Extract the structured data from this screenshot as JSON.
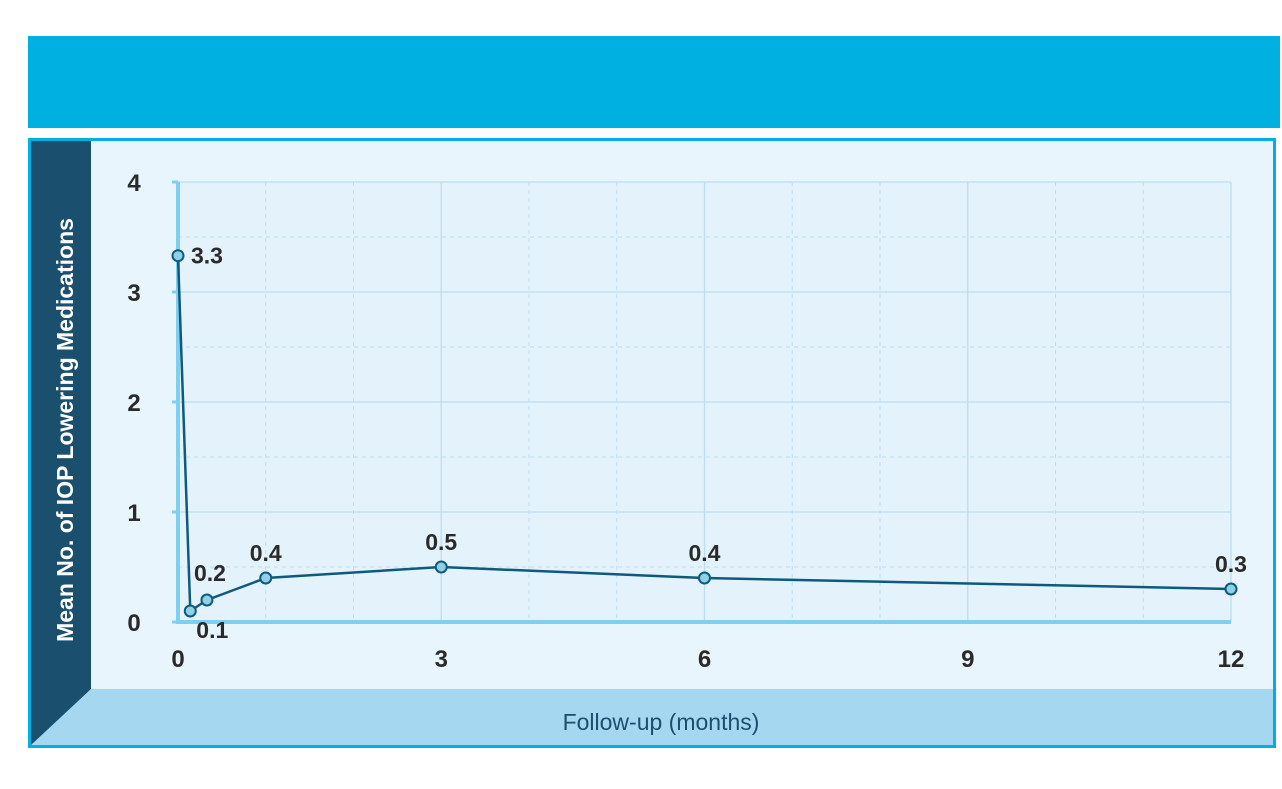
{
  "colors": {
    "header_bar": "#00b0e0",
    "panel_border": "#00b0e0",
    "ylabel_band": "#1a4f6e",
    "xlabel_band": "#a5d8f0",
    "plot_background": "#e4f2fb",
    "grid": "#b9def0",
    "axis": "#7fd0ee",
    "line": "#0e5a7e",
    "marker_fill": "#8fd0e6"
  },
  "chart_data": {
    "type": "line",
    "title": "",
    "xlabel": "Follow-up (months)",
    "ylabel": "Mean No. of IOP Lowering Medications",
    "xlim": [
      0,
      12
    ],
    "ylim": [
      0,
      4
    ],
    "xticks": [
      0,
      3,
      6,
      9,
      12
    ],
    "yticks": [
      0,
      1,
      2,
      3,
      4
    ],
    "grid": true,
    "legend": "none",
    "series": [
      {
        "x": [
          0,
          0.14,
          0.33,
          1,
          3,
          6,
          12
        ],
        "y": [
          3.33,
          0.1,
          0.2,
          0.4,
          0.5,
          0.4,
          0.3
        ],
        "labels": [
          "3.3",
          "0.1",
          "0.2",
          "0.4",
          "0.5",
          "0.4",
          "0.3"
        ]
      }
    ]
  }
}
